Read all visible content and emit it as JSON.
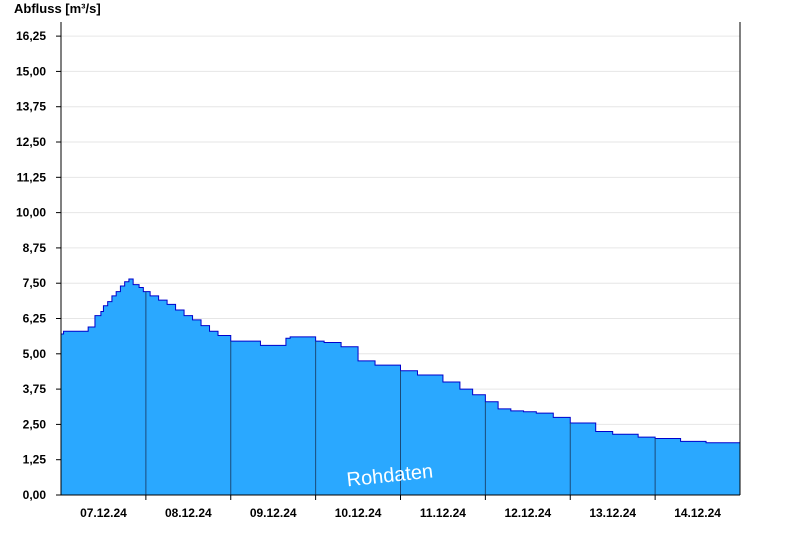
{
  "chart_data": {
    "type": "area",
    "ylabel": "Abfluss [m³/s]",
    "xlabel": "",
    "watermark": "Rohdaten",
    "ylim": [
      0,
      16.75
    ],
    "yticks": [
      "0,00",
      "1,25",
      "2,50",
      "3,75",
      "5,00",
      "6,25",
      "7,50",
      "8,75",
      "10,00",
      "11,25",
      "12,50",
      "13,75",
      "15,00",
      "16,25"
    ],
    "xrange_days": [
      6.5,
      14.5
    ],
    "xticks": [
      {
        "day": 7,
        "label": "07.12.24"
      },
      {
        "day": 8,
        "label": "08.12.24"
      },
      {
        "day": 9,
        "label": "09.12.24"
      },
      {
        "day": 10,
        "label": "10.12.24"
      },
      {
        "day": 11,
        "label": "11.12.24"
      },
      {
        "day": 12,
        "label": "12.12.24"
      },
      {
        "day": 13,
        "label": "13.12.24"
      },
      {
        "day": 14,
        "label": "14.12.24"
      }
    ],
    "grid": true,
    "colors": {
      "fill": "#2aa8ff",
      "line": "#0000cc",
      "grid": "#e6e6e6",
      "axis": "#000000"
    },
    "series": [
      {
        "x": [
          6.5,
          6.53,
          6.79,
          6.82,
          6.9,
          6.97,
          7.0,
          7.05,
          7.1,
          7.15,
          7.2,
          7.25,
          7.3,
          7.35,
          7.42,
          7.47,
          7.55,
          7.65,
          7.75,
          7.85,
          7.95,
          8.05,
          8.15,
          8.25,
          8.35,
          8.5,
          8.65,
          8.85,
          9.0,
          9.15,
          9.2,
          9.35,
          9.5,
          9.6,
          9.8,
          10.0,
          10.2,
          10.5,
          10.7,
          11.0,
          11.2,
          11.35,
          11.5,
          11.65,
          11.8,
          11.95,
          12.1,
          12.3,
          12.5,
          12.8,
          13.0,
          13.3,
          13.5,
          13.8,
          14.1,
          14.5
        ],
        "y": [
          5.7,
          5.8,
          5.8,
          5.95,
          6.35,
          6.5,
          6.7,
          6.85,
          7.05,
          7.2,
          7.4,
          7.55,
          7.65,
          7.45,
          7.35,
          7.2,
          7.05,
          6.9,
          6.75,
          6.55,
          6.35,
          6.2,
          6.0,
          5.8,
          5.65,
          5.45,
          5.45,
          5.3,
          5.3,
          5.55,
          5.6,
          5.6,
          5.45,
          5.4,
          5.25,
          4.75,
          4.6,
          4.4,
          4.25,
          4.0,
          3.75,
          3.55,
          3.3,
          3.05,
          2.98,
          2.95,
          2.9,
          2.75,
          2.55,
          2.25,
          2.15,
          2.05,
          2.0,
          1.9,
          1.85,
          1.75
        ]
      }
    ]
  }
}
